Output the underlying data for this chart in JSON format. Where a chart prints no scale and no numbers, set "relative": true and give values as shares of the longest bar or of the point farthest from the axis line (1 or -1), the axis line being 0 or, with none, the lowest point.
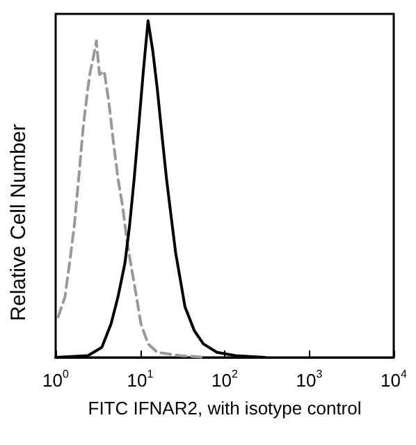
{
  "chart_data": {
    "type": "line",
    "xlabel": "FITC IFNAR2, with isotype control",
    "ylabel": "Relative Cell Number",
    "relative": true,
    "log": "x",
    "grid": false,
    "marker": "none",
    "xlim": [
      1,
      10000
    ],
    "xticks": [
      {
        "value": 1,
        "label": "10$^{0}$"
      },
      {
        "value": 10,
        "label": "10$^{1}$"
      },
      {
        "value": 100,
        "label": "10$^{2}$"
      },
      {
        "value": 1000,
        "label": "10$^{3}$"
      },
      {
        "value": 10000,
        "label": "10$^{4}$"
      }
    ],
    "series": [
      {
        "color": "#999999",
        "line_style": "dashed",
        "x": [
          1.07,
          1.29,
          1.46,
          1.66,
          1.87,
          2.13,
          2.41,
          2.57,
          2.74,
          3.03,
          3.3,
          3.75,
          4.25,
          4.82,
          5.47,
          6.19,
          7.03,
          7.97,
          9.04,
          10.2,
          12.4,
          15.9,
          30,
          60
        ],
        "values": [
          0.12,
          0.18,
          0.28,
          0.39,
          0.53,
          0.69,
          0.8,
          0.85,
          0.88,
          0.94,
          0.84,
          0.85,
          0.76,
          0.64,
          0.53,
          0.45,
          0.34,
          0.26,
          0.18,
          0.1,
          0.04,
          0.015,
          0.005,
          0
        ]
      },
      {
        "color": "#000000",
        "line_style": "solid",
        "x": [
          1,
          2.41,
          3.52,
          4.53,
          5.47,
          6.6,
          7.48,
          8.49,
          9.63,
          10.9,
          12.4,
          14.1,
          15.9,
          18.1,
          20.5,
          23.2,
          26.3,
          29.9,
          33.9,
          43.6,
          56,
          81,
          135,
          300
        ],
        "values": [
          0,
          0.005,
          0.03,
          0.1,
          0.18,
          0.28,
          0.39,
          0.53,
          0.69,
          0.85,
          1,
          0.91,
          0.8,
          0.66,
          0.53,
          0.42,
          0.31,
          0.23,
          0.15,
          0.08,
          0.04,
          0.015,
          0.005,
          0
        ]
      }
    ]
  }
}
